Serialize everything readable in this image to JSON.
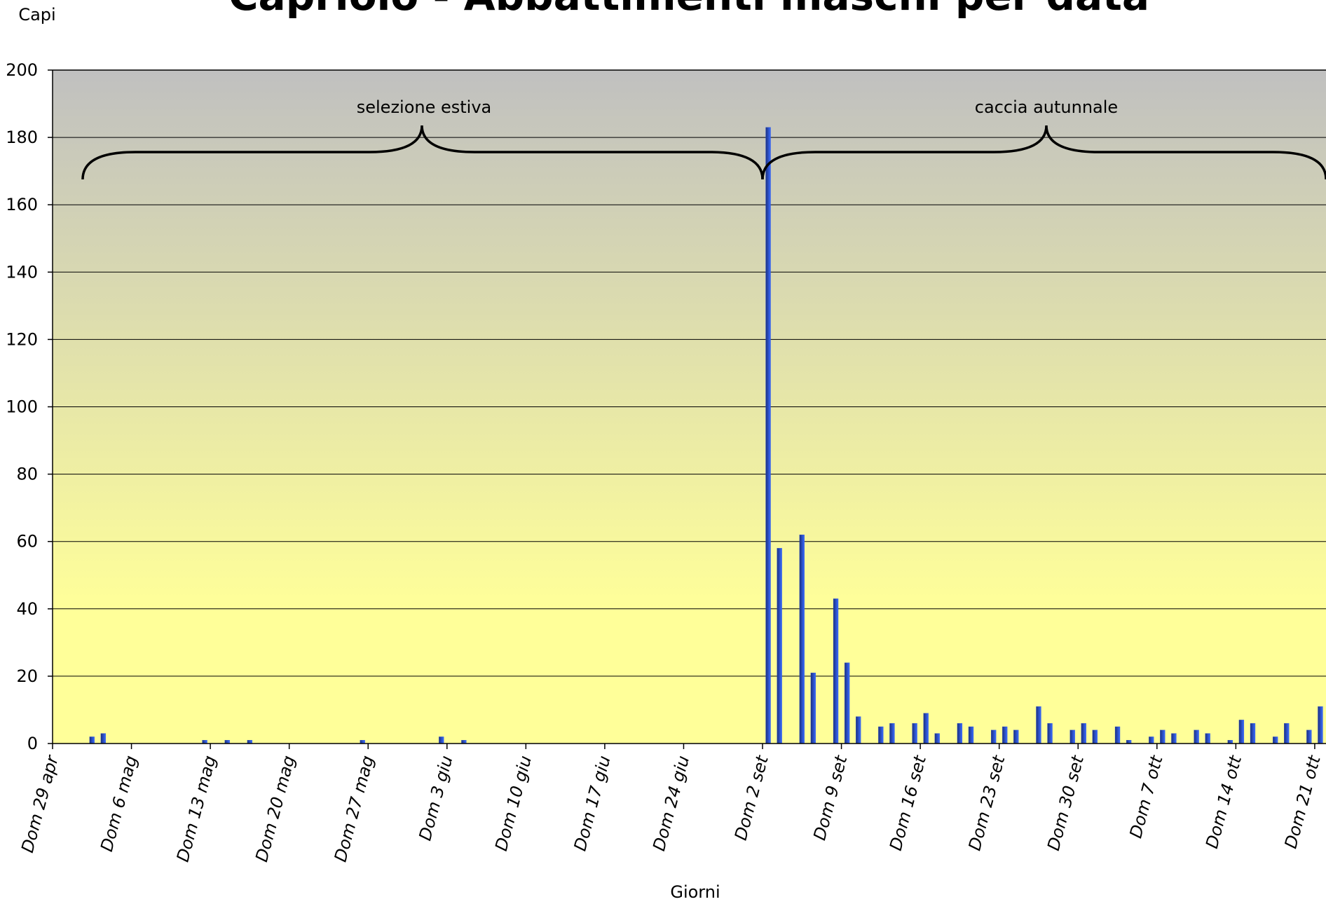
{
  "chart_data": {
    "type": "bar",
    "title": "Capriolo - Abbattimenti maschi per data",
    "y_label": "Capi",
    "x_label": "Giorni",
    "annotations": [
      "selezione estiva",
      "caccia autunnale"
    ],
    "color": "#2b50d8",
    "ylim": [
      0,
      200
    ],
    "yticks": [
      0,
      20,
      40,
      60,
      80,
      100,
      120,
      140,
      160,
      180,
      200
    ],
    "grid": true,
    "categories": [
      "Dom 29 apr",
      null,
      null,
      null,
      null,
      null,
      null,
      "Dom 6 mag",
      null,
      null,
      null,
      null,
      null,
      null,
      "Dom 13 mag",
      null,
      null,
      null,
      null,
      null,
      null,
      "Dom 20 mag",
      null,
      null,
      null,
      null,
      null,
      null,
      "Dom 27 mag",
      null,
      null,
      null,
      null,
      null,
      null,
      "Dom 3 giu",
      null,
      null,
      null,
      null,
      null,
      null,
      "Dom 10 giu",
      null,
      null,
      null,
      null,
      null,
      null,
      "Dom 17 giu",
      null,
      null,
      null,
      null,
      null,
      null,
      "Dom 24 giu",
      null,
      null,
      null,
      null,
      null,
      null,
      "Dom 2 set",
      null,
      null,
      null,
      null,
      null,
      null,
      "Dom 9 set",
      null,
      null,
      null,
      null,
      null,
      null,
      "Dom 16 set",
      null,
      null,
      null,
      null,
      null,
      null,
      "Dom 23 set",
      null,
      null,
      null,
      null,
      null,
      null,
      "Dom 30 set",
      null,
      null,
      null,
      null,
      null,
      null,
      "Dom 7 ott",
      null,
      null,
      null,
      null,
      null,
      null,
      "Dom 14 ott",
      null,
      null,
      null,
      null,
      null,
      null,
      "Dom 21 ott"
    ],
    "values": [
      0,
      0,
      0,
      2,
      3,
      0,
      0,
      0,
      0,
      0,
      0,
      0,
      0,
      1,
      0,
      1,
      0,
      1,
      0,
      0,
      0,
      0,
      0,
      0,
      0,
      0,
      0,
      1,
      0,
      0,
      0,
      0,
      0,
      0,
      2,
      0,
      1,
      0,
      0,
      0,
      0,
      0,
      0,
      0,
      0,
      0,
      0,
      0,
      0,
      0,
      0,
      0,
      0,
      0,
      0,
      0,
      0,
      0,
      0,
      0,
      0,
      0,
      0,
      183,
      58,
      0,
      62,
      21,
      0,
      43,
      24,
      8,
      0,
      5,
      6,
      0,
      6,
      9,
      3,
      0,
      6,
      5,
      0,
      4,
      5,
      4,
      0,
      11,
      6,
      0,
      4,
      6,
      4,
      0,
      5,
      1,
      0,
      2,
      4,
      3,
      0,
      4,
      3,
      0,
      1,
      7,
      6,
      0,
      2,
      6,
      0,
      4,
      11
    ]
  }
}
